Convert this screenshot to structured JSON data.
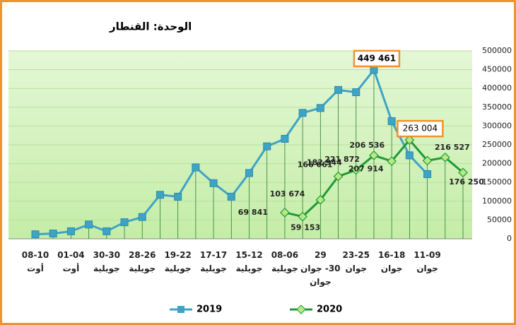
{
  "chart_data": {
    "type": "line",
    "title": "الوحدة: القنطار",
    "categories": [
      "08-10\nأوت",
      null,
      "01-04\nأوت",
      null,
      "30-30\nجويلية",
      null,
      "28-26\nجويلية",
      null,
      "19-22\nجويلية",
      null,
      "17-17\nجويلية",
      null,
      "15-12\nجويلية",
      null,
      "08-06\nجويلية",
      null,
      "29\n30- جوان\nجوان",
      null,
      "23-25\nجوان",
      null,
      "16-18\nجوان",
      null,
      "11-09\nجوان",
      null,
      null
    ],
    "series": [
      {
        "name": "2019",
        "color": "#3fa3c6",
        "values": [
          12000,
          14000,
          20000,
          38000,
          20000,
          44000,
          58000,
          117000,
          112000,
          190000,
          148000,
          112000,
          175000,
          246000,
          266000,
          335000,
          348000,
          396000,
          390000,
          449461,
          313000,
          222000,
          172000,
          null,
          null
        ],
        "value_labels": [
          null,
          null,
          null,
          null,
          null,
          null,
          null,
          null,
          null,
          null,
          null,
          null,
          null,
          null,
          null,
          null,
          null,
          null,
          null,
          "449 461",
          null,
          null,
          null,
          null,
          null
        ]
      },
      {
        "name": "2020",
        "color": "#1f9a36",
        "values": [
          null,
          null,
          null,
          null,
          null,
          null,
          null,
          null,
          null,
          null,
          null,
          null,
          null,
          null,
          69841,
          59153,
          103674,
          166061,
          182944,
          221872,
          206536,
          263004,
          207914,
          216527,
          176250
        ],
        "value_labels": [
          null,
          null,
          null,
          null,
          null,
          null,
          null,
          null,
          null,
          null,
          null,
          null,
          null,
          null,
          "69 841",
          "59 153",
          "103 674",
          "166 061",
          "182 944",
          "221 872",
          "206 536",
          "263 004",
          "207 914",
          "216 527",
          "176 250"
        ]
      }
    ],
    "ylim": [
      0,
      500000
    ],
    "yticks": [
      0,
      50000,
      100000,
      150000,
      200000,
      250000,
      300000,
      350000,
      400000,
      450000,
      500000
    ],
    "grid": true,
    "legend": "bottom"
  }
}
